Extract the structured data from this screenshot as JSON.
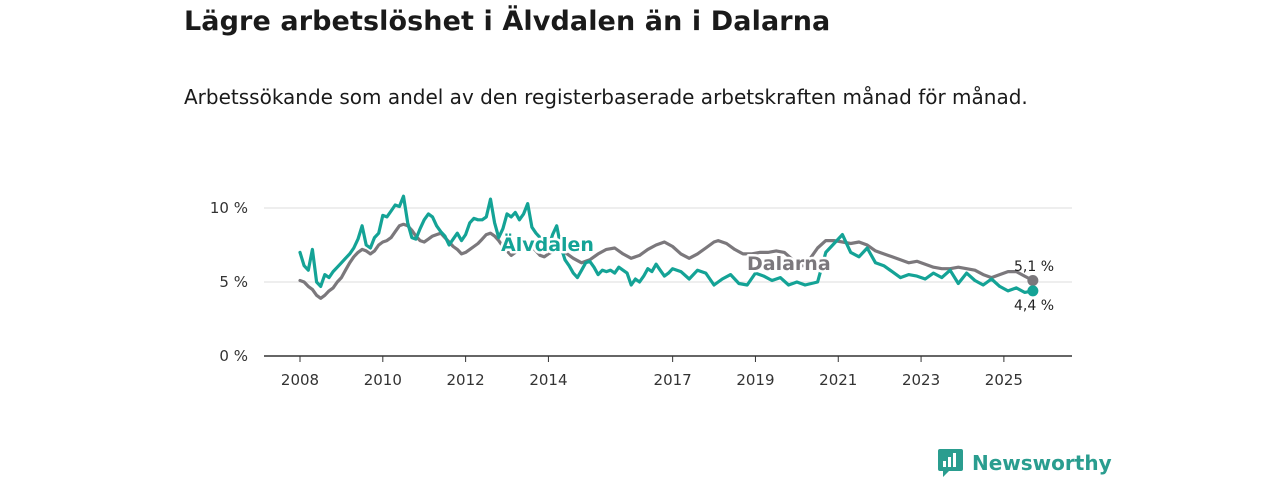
{
  "title": "Lägre arbetslöshet i Älvdalen än i Dalarna",
  "subtitle": "Arbetssökande som andel av den registerbaserade arbetskraften månad för månad.",
  "brand": {
    "name": "Newsworthy",
    "icon": "newsworthy-logo-icon"
  },
  "colors": {
    "alvdalen": "#14a396",
    "dalarna": "#7b787c",
    "grid": "#dddddd",
    "axis": "#333333"
  },
  "chart_data": {
    "type": "line",
    "title": "Lägre arbetslöshet i Älvdalen än i Dalarna",
    "xlabel": "",
    "ylabel": "",
    "y_ticks": [
      0,
      5,
      10
    ],
    "y_tick_labels": [
      "0 %",
      "5 %",
      "10 %"
    ],
    "ylim": [
      0,
      10
    ],
    "x_ticks": [
      2008,
      2010,
      2012,
      2014,
      2017,
      2019,
      2021,
      2023,
      2025
    ],
    "x_tick_labels": [
      "2008",
      "2010",
      "2012",
      "2014",
      "2017",
      "2019",
      "2021",
      "2023",
      "2025"
    ],
    "xlim": [
      2008,
      2025.8
    ],
    "grid": true,
    "series": [
      {
        "name": "Dalarna",
        "label": "Dalarna",
        "end_label": "5,1 %",
        "points": [
          [
            2008.0,
            5.1
          ],
          [
            2008.1,
            5.0
          ],
          [
            2008.2,
            4.7
          ],
          [
            2008.3,
            4.5
          ],
          [
            2008.4,
            4.1
          ],
          [
            2008.5,
            3.9
          ],
          [
            2008.6,
            4.1
          ],
          [
            2008.7,
            4.4
          ],
          [
            2008.8,
            4.6
          ],
          [
            2008.9,
            5.0
          ],
          [
            2009.0,
            5.3
          ],
          [
            2009.1,
            5.8
          ],
          [
            2009.2,
            6.3
          ],
          [
            2009.3,
            6.7
          ],
          [
            2009.4,
            7.0
          ],
          [
            2009.5,
            7.2
          ],
          [
            2009.6,
            7.1
          ],
          [
            2009.7,
            6.9
          ],
          [
            2009.8,
            7.1
          ],
          [
            2009.9,
            7.5
          ],
          [
            2010.0,
            7.7
          ],
          [
            2010.1,
            7.8
          ],
          [
            2010.2,
            8.0
          ],
          [
            2010.3,
            8.4
          ],
          [
            2010.4,
            8.8
          ],
          [
            2010.5,
            8.9
          ],
          [
            2010.6,
            8.8
          ],
          [
            2010.7,
            8.5
          ],
          [
            2010.8,
            8.1
          ],
          [
            2010.9,
            7.8
          ],
          [
            2011.0,
            7.7
          ],
          [
            2011.1,
            7.9
          ],
          [
            2011.2,
            8.1
          ],
          [
            2011.3,
            8.2
          ],
          [
            2011.4,
            8.3
          ],
          [
            2011.5,
            8.0
          ],
          [
            2011.6,
            7.7
          ],
          [
            2011.7,
            7.4
          ],
          [
            2011.8,
            7.2
          ],
          [
            2011.9,
            6.9
          ],
          [
            2012.0,
            7.0
          ],
          [
            2012.1,
            7.2
          ],
          [
            2012.2,
            7.4
          ],
          [
            2012.3,
            7.6
          ],
          [
            2012.4,
            7.9
          ],
          [
            2012.5,
            8.2
          ],
          [
            2012.6,
            8.3
          ],
          [
            2012.7,
            8.1
          ],
          [
            2012.8,
            7.8
          ],
          [
            2012.9,
            7.4
          ],
          [
            2013.0,
            7.1
          ],
          [
            2013.1,
            6.8
          ],
          [
            2013.2,
            7.0
          ],
          [
            2013.3,
            7.5
          ],
          [
            2013.4,
            7.8
          ],
          [
            2013.5,
            7.7
          ],
          [
            2013.6,
            7.4
          ],
          [
            2013.7,
            7.1
          ],
          [
            2013.8,
            6.8
          ],
          [
            2013.9,
            6.7
          ],
          [
            2014.0,
            6.9
          ],
          [
            2014.2,
            7.2
          ],
          [
            2014.4,
            7.0
          ],
          [
            2014.6,
            6.6
          ],
          [
            2014.8,
            6.3
          ],
          [
            2015.0,
            6.5
          ],
          [
            2015.2,
            6.9
          ],
          [
            2015.4,
            7.2
          ],
          [
            2015.6,
            7.3
          ],
          [
            2015.8,
            6.9
          ],
          [
            2016.0,
            6.6
          ],
          [
            2016.2,
            6.8
          ],
          [
            2016.4,
            7.2
          ],
          [
            2016.6,
            7.5
          ],
          [
            2016.8,
            7.7
          ],
          [
            2017.0,
            7.4
          ],
          [
            2017.2,
            6.9
          ],
          [
            2017.4,
            6.6
          ],
          [
            2017.6,
            6.9
          ],
          [
            2017.8,
            7.3
          ],
          [
            2018.0,
            7.7
          ],
          [
            2018.1,
            7.8
          ],
          [
            2018.3,
            7.6
          ],
          [
            2018.5,
            7.2
          ],
          [
            2018.7,
            6.9
          ],
          [
            2018.9,
            6.9
          ],
          [
            2019.1,
            7.0
          ],
          [
            2019.3,
            7.0
          ],
          [
            2019.5,
            7.1
          ],
          [
            2019.7,
            7.0
          ],
          [
            2019.9,
            6.5
          ],
          [
            2020.0,
            6.1
          ],
          [
            2020.2,
            6.1
          ],
          [
            2020.5,
            7.3
          ],
          [
            2020.7,
            7.8
          ],
          [
            2020.9,
            7.8
          ],
          [
            2021.1,
            7.7
          ],
          [
            2021.3,
            7.6
          ],
          [
            2021.5,
            7.7
          ],
          [
            2021.7,
            7.5
          ],
          [
            2021.9,
            7.1
          ],
          [
            2022.1,
            6.9
          ],
          [
            2022.3,
            6.7
          ],
          [
            2022.5,
            6.5
          ],
          [
            2022.7,
            6.3
          ],
          [
            2022.9,
            6.4
          ],
          [
            2023.1,
            6.2
          ],
          [
            2023.3,
            6.0
          ],
          [
            2023.5,
            5.9
          ],
          [
            2023.7,
            5.9
          ],
          [
            2023.9,
            6.0
          ],
          [
            2024.1,
            5.9
          ],
          [
            2024.3,
            5.8
          ],
          [
            2024.5,
            5.5
          ],
          [
            2024.7,
            5.3
          ],
          [
            2024.9,
            5.5
          ],
          [
            2025.1,
            5.7
          ],
          [
            2025.3,
            5.7
          ],
          [
            2025.5,
            5.4
          ],
          [
            2025.7,
            5.1
          ]
        ]
      },
      {
        "name": "Älvdalen",
        "label": "Älvdalen",
        "end_label": "4,4 %",
        "points": [
          [
            2008.0,
            7.0
          ],
          [
            2008.1,
            6.1
          ],
          [
            2008.2,
            5.8
          ],
          [
            2008.3,
            7.2
          ],
          [
            2008.4,
            5.0
          ],
          [
            2008.5,
            4.7
          ],
          [
            2008.6,
            5.5
          ],
          [
            2008.7,
            5.3
          ],
          [
            2008.8,
            5.7
          ],
          [
            2008.9,
            6.0
          ],
          [
            2009.0,
            6.3
          ],
          [
            2009.1,
            6.6
          ],
          [
            2009.2,
            6.9
          ],
          [
            2009.3,
            7.3
          ],
          [
            2009.4,
            7.9
          ],
          [
            2009.5,
            8.8
          ],
          [
            2009.6,
            7.5
          ],
          [
            2009.7,
            7.3
          ],
          [
            2009.8,
            8.0
          ],
          [
            2009.9,
            8.3
          ],
          [
            2010.0,
            9.5
          ],
          [
            2010.1,
            9.4
          ],
          [
            2010.2,
            9.8
          ],
          [
            2010.3,
            10.2
          ],
          [
            2010.4,
            10.1
          ],
          [
            2010.5,
            10.8
          ],
          [
            2010.6,
            9.0
          ],
          [
            2010.7,
            8.0
          ],
          [
            2010.8,
            7.9
          ],
          [
            2010.9,
            8.6
          ],
          [
            2011.0,
            9.2
          ],
          [
            2011.1,
            9.6
          ],
          [
            2011.2,
            9.4
          ],
          [
            2011.3,
            8.8
          ],
          [
            2011.4,
            8.4
          ],
          [
            2011.5,
            8.1
          ],
          [
            2011.6,
            7.5
          ],
          [
            2011.7,
            7.9
          ],
          [
            2011.8,
            8.3
          ],
          [
            2011.9,
            7.8
          ],
          [
            2012.0,
            8.2
          ],
          [
            2012.1,
            9.0
          ],
          [
            2012.2,
            9.3
          ],
          [
            2012.3,
            9.2
          ],
          [
            2012.4,
            9.2
          ],
          [
            2012.5,
            9.4
          ],
          [
            2012.6,
            10.6
          ],
          [
            2012.7,
            9.0
          ],
          [
            2012.8,
            8.0
          ],
          [
            2012.9,
            8.6
          ],
          [
            2013.0,
            9.6
          ],
          [
            2013.1,
            9.4
          ],
          [
            2013.2,
            9.7
          ],
          [
            2013.3,
            9.2
          ],
          [
            2013.4,
            9.6
          ],
          [
            2013.5,
            10.3
          ],
          [
            2013.6,
            8.7
          ],
          [
            2013.7,
            8.3
          ],
          [
            2013.8,
            8.0
          ],
          [
            2013.9,
            7.7
          ],
          [
            2014.0,
            7.3
          ],
          [
            2014.1,
            8.2
          ],
          [
            2014.2,
            8.8
          ],
          [
            2014.3,
            7.4
          ],
          [
            2014.4,
            6.5
          ],
          [
            2014.5,
            6.1
          ],
          [
            2014.6,
            5.6
          ],
          [
            2014.7,
            5.3
          ],
          [
            2014.8,
            5.8
          ],
          [
            2014.9,
            6.3
          ],
          [
            2015.0,
            6.4
          ],
          [
            2015.1,
            6.0
          ],
          [
            2015.2,
            5.5
          ],
          [
            2015.3,
            5.8
          ],
          [
            2015.4,
            5.7
          ],
          [
            2015.5,
            5.8
          ],
          [
            2015.6,
            5.6
          ],
          [
            2015.7,
            6.0
          ],
          [
            2015.8,
            5.8
          ],
          [
            2015.9,
            5.6
          ],
          [
            2016.0,
            4.8
          ],
          [
            2016.1,
            5.2
          ],
          [
            2016.2,
            5.0
          ],
          [
            2016.3,
            5.4
          ],
          [
            2016.4,
            5.9
          ],
          [
            2016.5,
            5.7
          ],
          [
            2016.6,
            6.2
          ],
          [
            2016.7,
            5.8
          ],
          [
            2016.8,
            5.4
          ],
          [
            2016.9,
            5.6
          ],
          [
            2017.0,
            5.9
          ],
          [
            2017.2,
            5.7
          ],
          [
            2017.4,
            5.2
          ],
          [
            2017.6,
            5.8
          ],
          [
            2017.8,
            5.6
          ],
          [
            2018.0,
            4.8
          ],
          [
            2018.2,
            5.2
          ],
          [
            2018.4,
            5.5
          ],
          [
            2018.6,
            4.9
          ],
          [
            2018.8,
            4.8
          ],
          [
            2019.0,
            5.6
          ],
          [
            2019.2,
            5.4
          ],
          [
            2019.4,
            5.1
          ],
          [
            2019.6,
            5.3
          ],
          [
            2019.8,
            4.8
          ],
          [
            2020.0,
            5.0
          ],
          [
            2020.2,
            4.8
          ],
          [
            2020.5,
            5.0
          ],
          [
            2020.7,
            7.0
          ],
          [
            2020.9,
            7.6
          ],
          [
            2021.1,
            8.2
          ],
          [
            2021.3,
            7.0
          ],
          [
            2021.5,
            6.7
          ],
          [
            2021.7,
            7.3
          ],
          [
            2021.9,
            6.3
          ],
          [
            2022.1,
            6.1
          ],
          [
            2022.3,
            5.7
          ],
          [
            2022.5,
            5.3
          ],
          [
            2022.7,
            5.5
          ],
          [
            2022.9,
            5.4
          ],
          [
            2023.1,
            5.2
          ],
          [
            2023.3,
            5.6
          ],
          [
            2023.5,
            5.3
          ],
          [
            2023.7,
            5.8
          ],
          [
            2023.9,
            4.9
          ],
          [
            2024.1,
            5.6
          ],
          [
            2024.3,
            5.1
          ],
          [
            2024.5,
            4.8
          ],
          [
            2024.7,
            5.2
          ],
          [
            2024.9,
            4.7
          ],
          [
            2025.1,
            4.4
          ],
          [
            2025.3,
            4.6
          ],
          [
            2025.5,
            4.3
          ],
          [
            2025.7,
            4.4
          ]
        ]
      }
    ]
  }
}
